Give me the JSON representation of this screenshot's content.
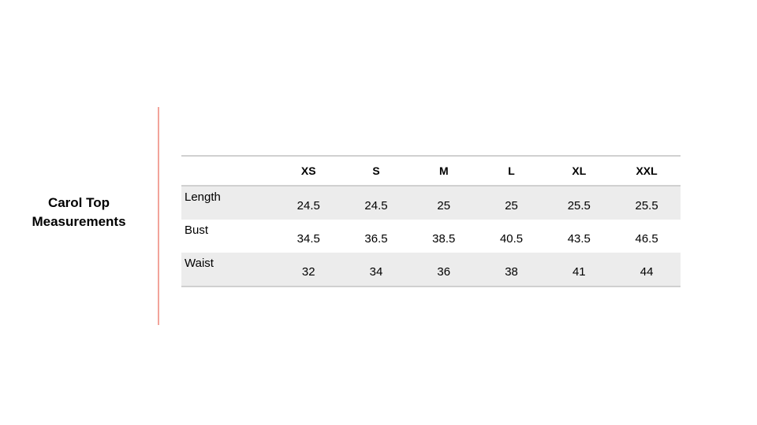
{
  "title_lines": [
    "Carol Top",
    "Measurements"
  ],
  "table": {
    "headers": [
      "",
      "XS",
      "S",
      "M",
      "L",
      "XL",
      "XXL"
    ],
    "rows": [
      {
        "label": "Length",
        "values": [
          "24.5",
          "24.5",
          "25",
          "25",
          "25.5",
          "25.5"
        ]
      },
      {
        "label": "Bust",
        "values": [
          "34.5",
          "36.5",
          "38.5",
          "40.5",
          "43.5",
          "46.5"
        ]
      },
      {
        "label": "Waist",
        "values": [
          "32",
          "34",
          "36",
          "38",
          "41",
          "44"
        ]
      }
    ]
  },
  "colors": {
    "divider": "#f2a49b",
    "row_shade": "#ececec"
  }
}
